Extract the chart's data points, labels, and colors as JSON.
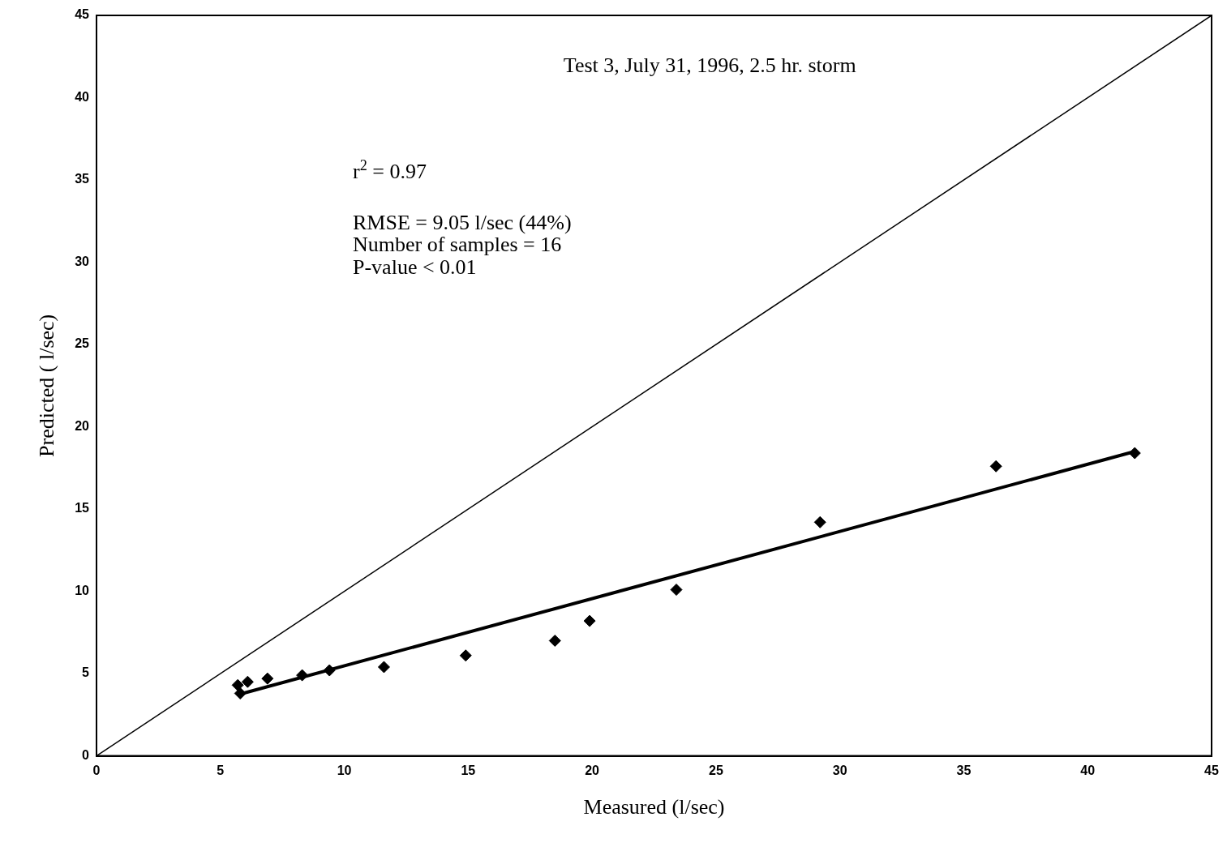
{
  "chart_data": {
    "type": "scatter",
    "title": "Test 3, July 31, 1996, 2.5 hr. storm",
    "xlabel": "Measured (l/sec)",
    "ylabel": "Predicted ( l/sec)",
    "annotations": [
      "r$^{2}$ = 0.97",
      "RMSE = 9.05 l/sec (44%)",
      "Number of samples = 16",
      "P-value < 0.01"
    ],
    "series": [
      {
        "type": "scatter",
        "color": "#000000",
        "marker": "diamond",
        "x": [
          5.7,
          5.8,
          6.1,
          6.9,
          8.3,
          9.4,
          11.6,
          14.9,
          18.5,
          19.9,
          23.4,
          29.2,
          36.3,
          41.9
        ],
        "values": [
          4.3,
          3.8,
          4.5,
          4.7,
          4.9,
          5.2,
          5.4,
          6.1,
          7.0,
          8.2,
          10.1,
          14.2,
          17.6,
          18.4
        ]
      },
      {
        "type": "line",
        "color": "#000000",
        "marker": "none",
        "x": [
          5.9,
          41.9
        ],
        "values": [
          3.8,
          18.5
        ]
      },
      {
        "type": "line",
        "color": "#000000",
        "marker": "none",
        "x": [
          0,
          45
        ],
        "values": [
          0,
          45
        ]
      }
    ],
    "xlim": [
      0,
      45
    ],
    "ylim": [
      0,
      45
    ],
    "xticks": [
      0,
      5,
      10,
      15,
      20,
      25,
      30,
      35,
      40,
      45
    ],
    "yticks": [
      0,
      5,
      10,
      15,
      20,
      25,
      30,
      35,
      40,
      45
    ],
    "grid": false,
    "legend": false
  }
}
